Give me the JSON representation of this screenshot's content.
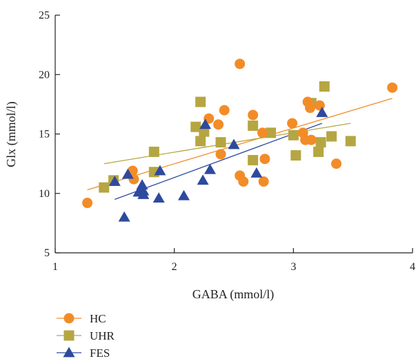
{
  "chart_data": {
    "type": "scatter",
    "xlabel": "GABA (mmol/l)",
    "ylabel": "Glx (mmol/l)",
    "xlim": [
      1,
      4
    ],
    "ylim": [
      5,
      25
    ],
    "xticks": [
      "1",
      "2",
      "3",
      "4"
    ],
    "yticks": [
      "5",
      "10",
      "15",
      "20",
      "25"
    ],
    "xtick_values": [
      1,
      2,
      3,
      4
    ],
    "ytick_values": [
      5,
      10,
      15,
      20,
      25
    ],
    "grid": false,
    "legend_position": "bottom-left",
    "series": [
      {
        "name": "HC",
        "marker": "circle",
        "color": "#F28C28",
        "points": [
          [
            1.27,
            9.2
          ],
          [
            1.65,
            11.9
          ],
          [
            1.66,
            11.2
          ],
          [
            2.29,
            16.3
          ],
          [
            2.37,
            15.8
          ],
          [
            2.39,
            13.3
          ],
          [
            2.42,
            17.0
          ],
          [
            2.55,
            20.9
          ],
          [
            2.55,
            11.5
          ],
          [
            2.58,
            11.0
          ],
          [
            2.66,
            16.6
          ],
          [
            2.74,
            15.1
          ],
          [
            2.75,
            11.0
          ],
          [
            2.76,
            12.9
          ],
          [
            2.99,
            15.9
          ],
          [
            3.08,
            15.1
          ],
          [
            3.1,
            14.5
          ],
          [
            3.12,
            17.7
          ],
          [
            3.14,
            17.2
          ],
          [
            3.15,
            14.5
          ],
          [
            3.22,
            17.4
          ],
          [
            3.36,
            12.5
          ],
          [
            3.83,
            18.9
          ]
        ],
        "trendline": [
          [
            1.27,
            10.3
          ],
          [
            3.83,
            18.0
          ]
        ]
      },
      {
        "name": "UHR",
        "marker": "square",
        "color": "#B5A642",
        "points": [
          [
            1.41,
            10.5
          ],
          [
            1.49,
            11.1
          ],
          [
            1.83,
            13.5
          ],
          [
            1.83,
            11.8
          ],
          [
            2.18,
            15.6
          ],
          [
            2.22,
            17.7
          ],
          [
            2.22,
            14.4
          ],
          [
            2.25,
            15.2
          ],
          [
            2.39,
            14.3
          ],
          [
            2.66,
            15.7
          ],
          [
            2.66,
            12.8
          ],
          [
            2.81,
            15.1
          ],
          [
            3.0,
            14.9
          ],
          [
            3.02,
            13.2
          ],
          [
            3.15,
            17.6
          ],
          [
            3.21,
            13.5
          ],
          [
            3.23,
            14.3
          ],
          [
            3.26,
            19.0
          ],
          [
            3.32,
            14.8
          ],
          [
            3.48,
            14.4
          ]
        ],
        "trendline": [
          [
            1.41,
            12.5
          ],
          [
            3.48,
            15.9
          ]
        ]
      },
      {
        "name": "FES",
        "marker": "triangle",
        "color": "#2E4A9E",
        "points": [
          [
            1.5,
            11.0
          ],
          [
            1.58,
            8.0
          ],
          [
            1.61,
            11.6
          ],
          [
            1.7,
            10.1
          ],
          [
            1.73,
            10.7
          ],
          [
            1.74,
            9.9
          ],
          [
            1.74,
            10.2
          ],
          [
            1.87,
            9.6
          ],
          [
            1.88,
            11.9
          ],
          [
            2.08,
            9.8
          ],
          [
            2.24,
            11.1
          ],
          [
            2.26,
            15.8
          ],
          [
            2.3,
            12.0
          ],
          [
            2.5,
            14.1
          ],
          [
            2.69,
            11.7
          ],
          [
            3.24,
            16.8
          ]
        ],
        "trendline": [
          [
            1.5,
            9.5
          ],
          [
            3.24,
            15.9
          ]
        ]
      }
    ]
  },
  "colors": {
    "axis": "#222222",
    "HC": "#F28C28",
    "UHR": "#B5A642",
    "FES": "#2E4A9E"
  }
}
